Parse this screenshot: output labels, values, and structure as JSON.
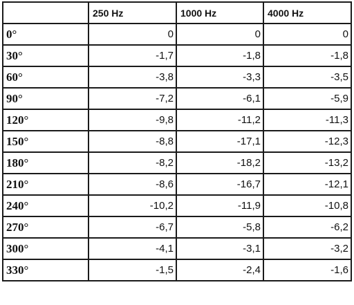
{
  "table": {
    "columns": [
      "",
      "250 Hz",
      "1000 Hz",
      "4000 Hz"
    ],
    "rows": [
      {
        "angle": "0°",
        "values": [
          "0",
          "0",
          "0"
        ]
      },
      {
        "angle": "30°",
        "values": [
          "-1,7",
          "-1,8",
          "-1,8"
        ]
      },
      {
        "angle": "60°",
        "values": [
          "-3,8",
          "-3,3",
          "-3,5"
        ]
      },
      {
        "angle": "90°",
        "values": [
          "-7,2",
          "-6,1",
          "-5,9"
        ]
      },
      {
        "angle": "120°",
        "values": [
          "-9,8",
          "-11,2",
          "-11,3"
        ]
      },
      {
        "angle": "150°",
        "values": [
          "-8,8",
          "-17,1",
          "-12,3"
        ]
      },
      {
        "angle": "180°",
        "values": [
          "-8,2",
          "-18,2",
          "-13,2"
        ]
      },
      {
        "angle": "210°",
        "values": [
          "-8,6",
          "-16,7",
          "-12,1"
        ]
      },
      {
        "angle": "240°",
        "values": [
          "-10,2",
          "-11,9",
          "-10,8"
        ]
      },
      {
        "angle": "270°",
        "values": [
          "-6,7",
          "-5,8",
          "-6,2"
        ]
      },
      {
        "angle": "300°",
        "values": [
          "-4,1",
          "-3,1",
          "-3,2"
        ]
      },
      {
        "angle": "330°",
        "values": [
          "-1,5",
          "-2,4",
          "-1,6"
        ]
      }
    ]
  }
}
